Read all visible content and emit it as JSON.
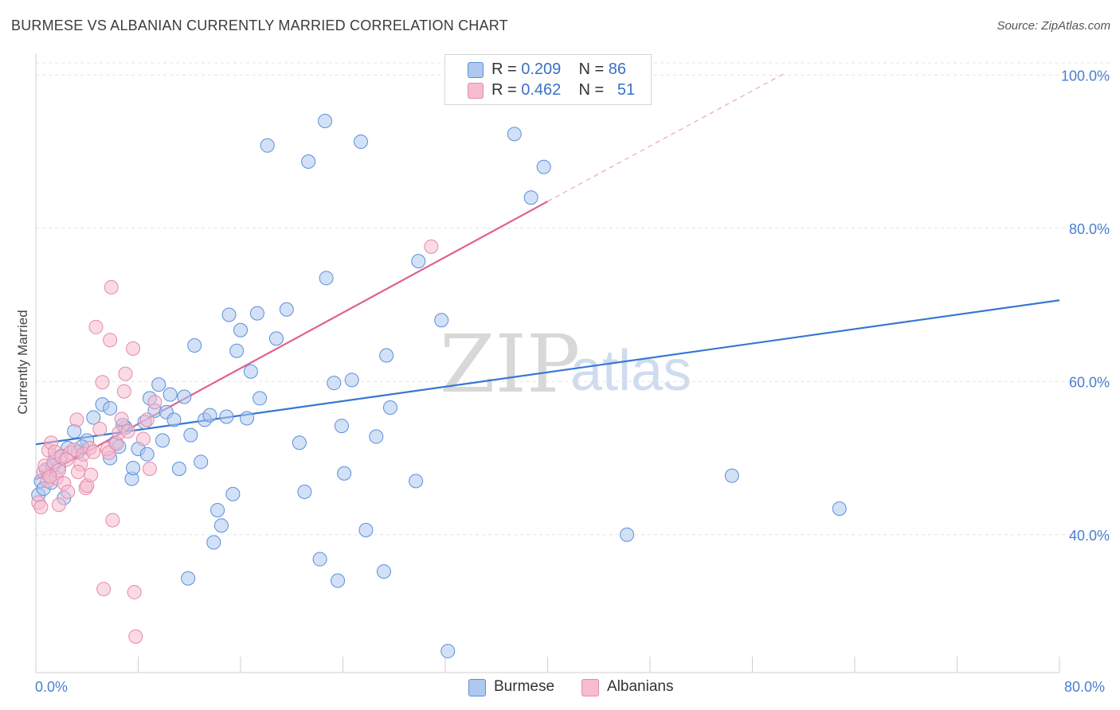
{
  "title": "BURMESE VS ALBANIAN CURRENTLY MARRIED CORRELATION CHART",
  "source": "Source: ZipAtlas.com",
  "watermark": {
    "zip": "ZIP",
    "atlas": "atlas"
  },
  "legend": {
    "rows": [
      {
        "r_label": "R = ",
        "r_value": "0.209",
        "n_label": "N = ",
        "n_value": "86",
        "color": "#aec8ef"
      },
      {
        "r_label": "R = ",
        "r_value": "0.462",
        "n_label": "N = ",
        "n_value": "51",
        "color": "#f6bcd0"
      }
    ]
  },
  "bottom_legend": {
    "burmese": "Burmese",
    "albanians": "Albanians"
  },
  "chart_data": {
    "type": "scatter",
    "title": "BURMESE VS ALBANIAN CURRENTLY MARRIED CORRELATION CHART",
    "xlabel": "",
    "ylabel": "Currently Married",
    "xlim": [
      0,
      80
    ],
    "ylim": [
      22,
      102
    ],
    "x_tick_labels": [
      "0.0%",
      "80.0%"
    ],
    "y_ticks": [
      40,
      60,
      80,
      100
    ],
    "y_tick_labels": [
      "40.0%",
      "60.0%",
      "80.0%",
      "100.0%"
    ],
    "series": [
      {
        "name": "Burmese",
        "color": "#5b8fdb",
        "fill": "#aec8ef",
        "trend": {
          "x": [
            0,
            80
          ],
          "y": [
            51.8,
            70.6
          ],
          "color": "#3577d4"
        },
        "points": [
          [
            0.2,
            45.2
          ],
          [
            0.4,
            47.0
          ],
          [
            0.6,
            46.0
          ],
          [
            0.8,
            48.5
          ],
          [
            1.0,
            47.8
          ],
          [
            1.2,
            46.8
          ],
          [
            1.5,
            50.0
          ],
          [
            1.8,
            48.8
          ],
          [
            2.0,
            50.3
          ],
          [
            2.2,
            44.8
          ],
          [
            2.5,
            51.3
          ],
          [
            3.0,
            53.5
          ],
          [
            3.3,
            50.8
          ],
          [
            4.0,
            52.3
          ],
          [
            4.5,
            55.3
          ],
          [
            5.2,
            57.0
          ],
          [
            5.8,
            50.0
          ],
          [
            5.8,
            56.5
          ],
          [
            6.2,
            52.0
          ],
          [
            6.5,
            51.5
          ],
          [
            7.0,
            54.0
          ],
          [
            7.5,
            47.3
          ],
          [
            7.6,
            48.7
          ],
          [
            8.0,
            51.2
          ],
          [
            8.5,
            54.7
          ],
          [
            8.7,
            50.5
          ],
          [
            8.9,
            57.8
          ],
          [
            9.3,
            56.2
          ],
          [
            9.6,
            59.6
          ],
          [
            9.9,
            52.3
          ],
          [
            10.2,
            56.0
          ],
          [
            10.5,
            58.3
          ],
          [
            10.8,
            55.0
          ],
          [
            11.2,
            48.6
          ],
          [
            11.6,
            58.0
          ],
          [
            11.9,
            34.3
          ],
          [
            12.1,
            53.0
          ],
          [
            12.4,
            64.7
          ],
          [
            12.9,
            49.5
          ],
          [
            13.2,
            55.0
          ],
          [
            13.6,
            55.6
          ],
          [
            13.9,
            39.0
          ],
          [
            14.2,
            43.2
          ],
          [
            14.5,
            41.2
          ],
          [
            14.9,
            55.4
          ],
          [
            15.1,
            68.7
          ],
          [
            15.4,
            45.3
          ],
          [
            15.7,
            64.0
          ],
          [
            16.0,
            66.7
          ],
          [
            16.5,
            55.2
          ],
          [
            16.8,
            61.3
          ],
          [
            17.3,
            68.9
          ],
          [
            17.5,
            57.8
          ],
          [
            18.1,
            90.8
          ],
          [
            18.8,
            65.6
          ],
          [
            19.6,
            69.4
          ],
          [
            20.6,
            52.0
          ],
          [
            21.0,
            45.6
          ],
          [
            21.3,
            88.7
          ],
          [
            22.2,
            36.8
          ],
          [
            22.6,
            94.0
          ],
          [
            22.7,
            73.5
          ],
          [
            23.3,
            59.8
          ],
          [
            23.6,
            34.0
          ],
          [
            23.9,
            54.2
          ],
          [
            24.1,
            48.0
          ],
          [
            24.7,
            60.2
          ],
          [
            25.4,
            91.3
          ],
          [
            25.8,
            40.6
          ],
          [
            26.6,
            52.8
          ],
          [
            27.2,
            35.2
          ],
          [
            27.4,
            63.4
          ],
          [
            27.7,
            56.6
          ],
          [
            29.7,
            47.0
          ],
          [
            29.9,
            75.7
          ],
          [
            31.7,
            68.0
          ],
          [
            32.2,
            24.8
          ],
          [
            37.4,
            92.3
          ],
          [
            38.7,
            84.0
          ],
          [
            39.7,
            88.0
          ],
          [
            46.2,
            40.0
          ],
          [
            54.4,
            47.7
          ],
          [
            62.8,
            43.4
          ],
          [
            3.6,
            51.5
          ],
          [
            6.8,
            54.3
          ],
          [
            1.3,
            49.0
          ]
        ]
      },
      {
        "name": "Albanians",
        "color": "#e58aa8",
        "fill": "#f6bcd0",
        "trend": {
          "x": [
            0,
            40
          ],
          "y": [
            47.2,
            83.5
          ],
          "color": "#e0608f"
        },
        "trend_dashed": {
          "x": [
            40,
            58.5
          ],
          "y": [
            83.5,
            100.2
          ]
        },
        "points": [
          [
            0.2,
            44.2
          ],
          [
            0.4,
            43.6
          ],
          [
            0.6,
            48.2
          ],
          [
            0.7,
            49.0
          ],
          [
            0.9,
            47.0
          ],
          [
            1.0,
            51.0
          ],
          [
            1.2,
            52.0
          ],
          [
            1.4,
            49.5
          ],
          [
            1.5,
            50.8
          ],
          [
            1.6,
            47.4
          ],
          [
            1.8,
            48.4
          ],
          [
            1.8,
            43.9
          ],
          [
            2.0,
            50.2
          ],
          [
            2.2,
            46.7
          ],
          [
            2.5,
            45.6
          ],
          [
            2.7,
            50.7
          ],
          [
            3.0,
            51.1
          ],
          [
            3.2,
            55.0
          ],
          [
            3.5,
            49.2
          ],
          [
            3.7,
            50.5
          ],
          [
            3.9,
            46.1
          ],
          [
            4.0,
            46.4
          ],
          [
            4.2,
            51.3
          ],
          [
            4.3,
            47.8
          ],
          [
            4.5,
            50.8
          ],
          [
            4.7,
            67.1
          ],
          [
            5.0,
            53.8
          ],
          [
            5.2,
            59.9
          ],
          [
            5.3,
            32.9
          ],
          [
            5.6,
            51.2
          ],
          [
            5.7,
            50.7
          ],
          [
            5.8,
            65.4
          ],
          [
            5.9,
            72.3
          ],
          [
            6.0,
            41.9
          ],
          [
            6.3,
            51.9
          ],
          [
            6.5,
            53.3
          ],
          [
            6.7,
            55.1
          ],
          [
            6.9,
            58.7
          ],
          [
            7.0,
            61.0
          ],
          [
            7.2,
            53.5
          ],
          [
            7.6,
            64.3
          ],
          [
            7.7,
            32.5
          ],
          [
            7.8,
            26.7
          ],
          [
            8.4,
            52.5
          ],
          [
            8.7,
            55.0
          ],
          [
            8.9,
            48.6
          ],
          [
            9.3,
            57.3
          ],
          [
            30.9,
            77.6
          ],
          [
            2.4,
            49.8
          ],
          [
            1.1,
            47.6
          ],
          [
            3.3,
            48.2
          ]
        ]
      }
    ]
  }
}
